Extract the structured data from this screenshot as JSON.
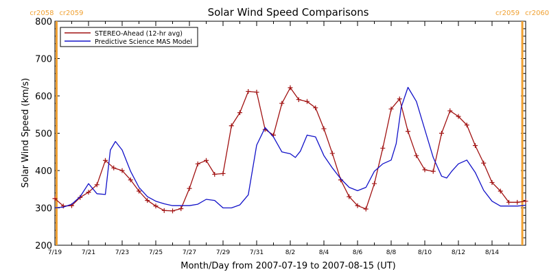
{
  "chart_data": {
    "type": "line",
    "title": "Solar Wind Speed Comparisons",
    "xlabel": "Month/Day from 2007-07-19 to 2007-08-15 (UT)",
    "ylabel": "Solar Wind Speed (km/s)",
    "xlim": [
      0,
      28
    ],
    "ylim": [
      200,
      800
    ],
    "grid": false,
    "legend_position": "top-left",
    "x_unit_note": "days since 2007-07-19 00:00 UT",
    "x_ticks": [
      {
        "x": 0,
        "label": "7/19"
      },
      {
        "x": 2,
        "label": "7/21"
      },
      {
        "x": 4,
        "label": "7/23"
      },
      {
        "x": 6,
        "label": "7/25"
      },
      {
        "x": 8,
        "label": "7/27"
      },
      {
        "x": 10,
        "label": "7/29"
      },
      {
        "x": 12,
        "label": "7/31"
      },
      {
        "x": 14,
        "label": "8/2"
      },
      {
        "x": 16,
        "label": "8/4"
      },
      {
        "x": 18,
        "label": "8/6"
      },
      {
        "x": 20,
        "label": "8/8"
      },
      {
        "x": 22,
        "label": "8/10"
      },
      {
        "x": 24,
        "label": "8/12"
      },
      {
        "x": 26,
        "label": "8/14"
      }
    ],
    "y_ticks": [
      200,
      300,
      400,
      500,
      600,
      700,
      800
    ],
    "carrington_markers": [
      {
        "x": 0.1,
        "labels": [
          "cr2058",
          "cr2059"
        ],
        "color": "#f0a030"
      },
      {
        "x": 27.8,
        "labels": [
          "cr2059",
          "cr2060"
        ],
        "color": "#f0a030"
      }
    ],
    "series": [
      {
        "name": "STEREO-Ahead (12-hr avg)",
        "color": "#a01010",
        "marker": "plus",
        "x": [
          0,
          0.5,
          1,
          1.5,
          2,
          2.5,
          3,
          3.5,
          4,
          4.5,
          5,
          5.5,
          6,
          6.5,
          7,
          7.5,
          8,
          8.5,
          9,
          9.5,
          10,
          10.5,
          11,
          11.5,
          12,
          12.5,
          13,
          13.5,
          14,
          14.5,
          15,
          15.5,
          16,
          16.5,
          17,
          17.5,
          18,
          18.5,
          19,
          19.5,
          20,
          20.5,
          21,
          21.5,
          22,
          22.5,
          23,
          23.5,
          24,
          24.5,
          25,
          25.5,
          26,
          26.5,
          27,
          27.5,
          28
        ],
        "values": [
          325,
          305,
          306,
          328,
          342,
          362,
          427,
          407,
          400,
          375,
          345,
          320,
          305,
          293,
          292,
          298,
          352,
          418,
          427,
          390,
          392,
          520,
          555,
          612,
          610,
          510,
          495,
          580,
          622,
          590,
          585,
          568,
          512,
          446,
          375,
          330,
          306,
          297,
          365,
          460,
          565,
          592,
          505,
          440,
          402,
          398,
          500,
          560,
          545,
          522,
          467,
          420,
          368,
          345,
          315,
          315,
          318
        ]
      },
      {
        "name": "Predictive Science MAS Model",
        "color": "#1010c8",
        "marker": "none",
        "x": [
          0,
          0.5,
          1,
          1.5,
          2,
          2.5,
          3,
          3.3,
          3.6,
          4,
          4.5,
          5,
          5.5,
          6,
          6.5,
          7,
          7.5,
          8,
          8.5,
          9,
          9.5,
          10,
          10.5,
          11,
          11.5,
          12,
          12.5,
          13,
          13.5,
          14,
          14.3,
          14.6,
          15,
          15.5,
          16,
          16.5,
          17,
          17.5,
          18,
          18.5,
          19,
          19.5,
          20,
          20.3,
          20.6,
          21,
          21.5,
          22,
          22.5,
          23,
          23.3,
          23.6,
          24,
          24.5,
          25,
          25.5,
          26,
          26.5,
          27,
          27.5,
          28
        ],
        "values": [
          300,
          302,
          310,
          330,
          365,
          338,
          336,
          455,
          478,
          455,
          398,
          355,
          330,
          318,
          311,
          306,
          306,
          306,
          310,
          323,
          320,
          300,
          300,
          308,
          335,
          468,
          515,
          490,
          450,
          445,
          435,
          452,
          495,
          490,
          440,
          407,
          378,
          355,
          346,
          355,
          398,
          418,
          428,
          472,
          570,
          623,
          585,
          510,
          435,
          385,
          380,
          398,
          418,
          428,
          395,
          347,
          318,
          305,
          305,
          305,
          307
        ]
      }
    ]
  }
}
